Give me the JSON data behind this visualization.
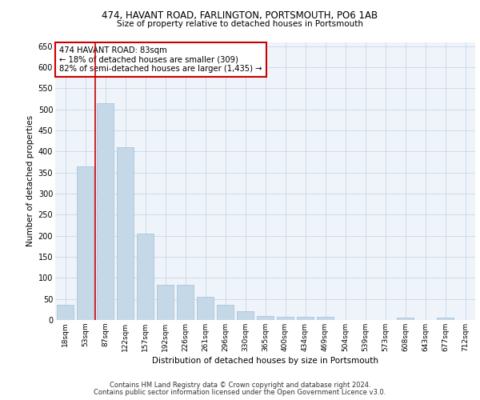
{
  "title1": "474, HAVANT ROAD, FARLINGTON, PORTSMOUTH, PO6 1AB",
  "title2": "Size of property relative to detached houses in Portsmouth",
  "xlabel": "Distribution of detached houses by size in Portsmouth",
  "ylabel": "Number of detached properties",
  "categories": [
    "18sqm",
    "53sqm",
    "87sqm",
    "122sqm",
    "157sqm",
    "192sqm",
    "226sqm",
    "261sqm",
    "296sqm",
    "330sqm",
    "365sqm",
    "400sqm",
    "434sqm",
    "469sqm",
    "504sqm",
    "539sqm",
    "573sqm",
    "608sqm",
    "643sqm",
    "677sqm",
    "712sqm"
  ],
  "bar_heights": [
    37,
    365,
    515,
    410,
    205,
    84,
    84,
    55,
    37,
    20,
    10,
    7,
    7,
    7,
    0,
    0,
    0,
    5,
    0,
    5,
    0
  ],
  "bar_color": "#c5d8e8",
  "bar_edge_color": "#a0c0d8",
  "grid_color": "#c8d8e8",
  "background_color": "#eef4fa",
  "vline_color": "#cc0000",
  "annotation_line1": "474 HAVANT ROAD: 83sqm",
  "annotation_line2": "← 18% of detached houses are smaller (309)",
  "annotation_line3": "82% of semi-detached houses are larger (1,435) →",
  "annotation_box_color": "#ffffff",
  "annotation_box_edge": "#cc0000",
  "footer1": "Contains HM Land Registry data © Crown copyright and database right 2024.",
  "footer2": "Contains public sector information licensed under the Open Government Licence v3.0.",
  "ylim": [
    0,
    660
  ],
  "yticks": [
    0,
    50,
    100,
    150,
    200,
    250,
    300,
    350,
    400,
    450,
    500,
    550,
    600,
    650
  ]
}
